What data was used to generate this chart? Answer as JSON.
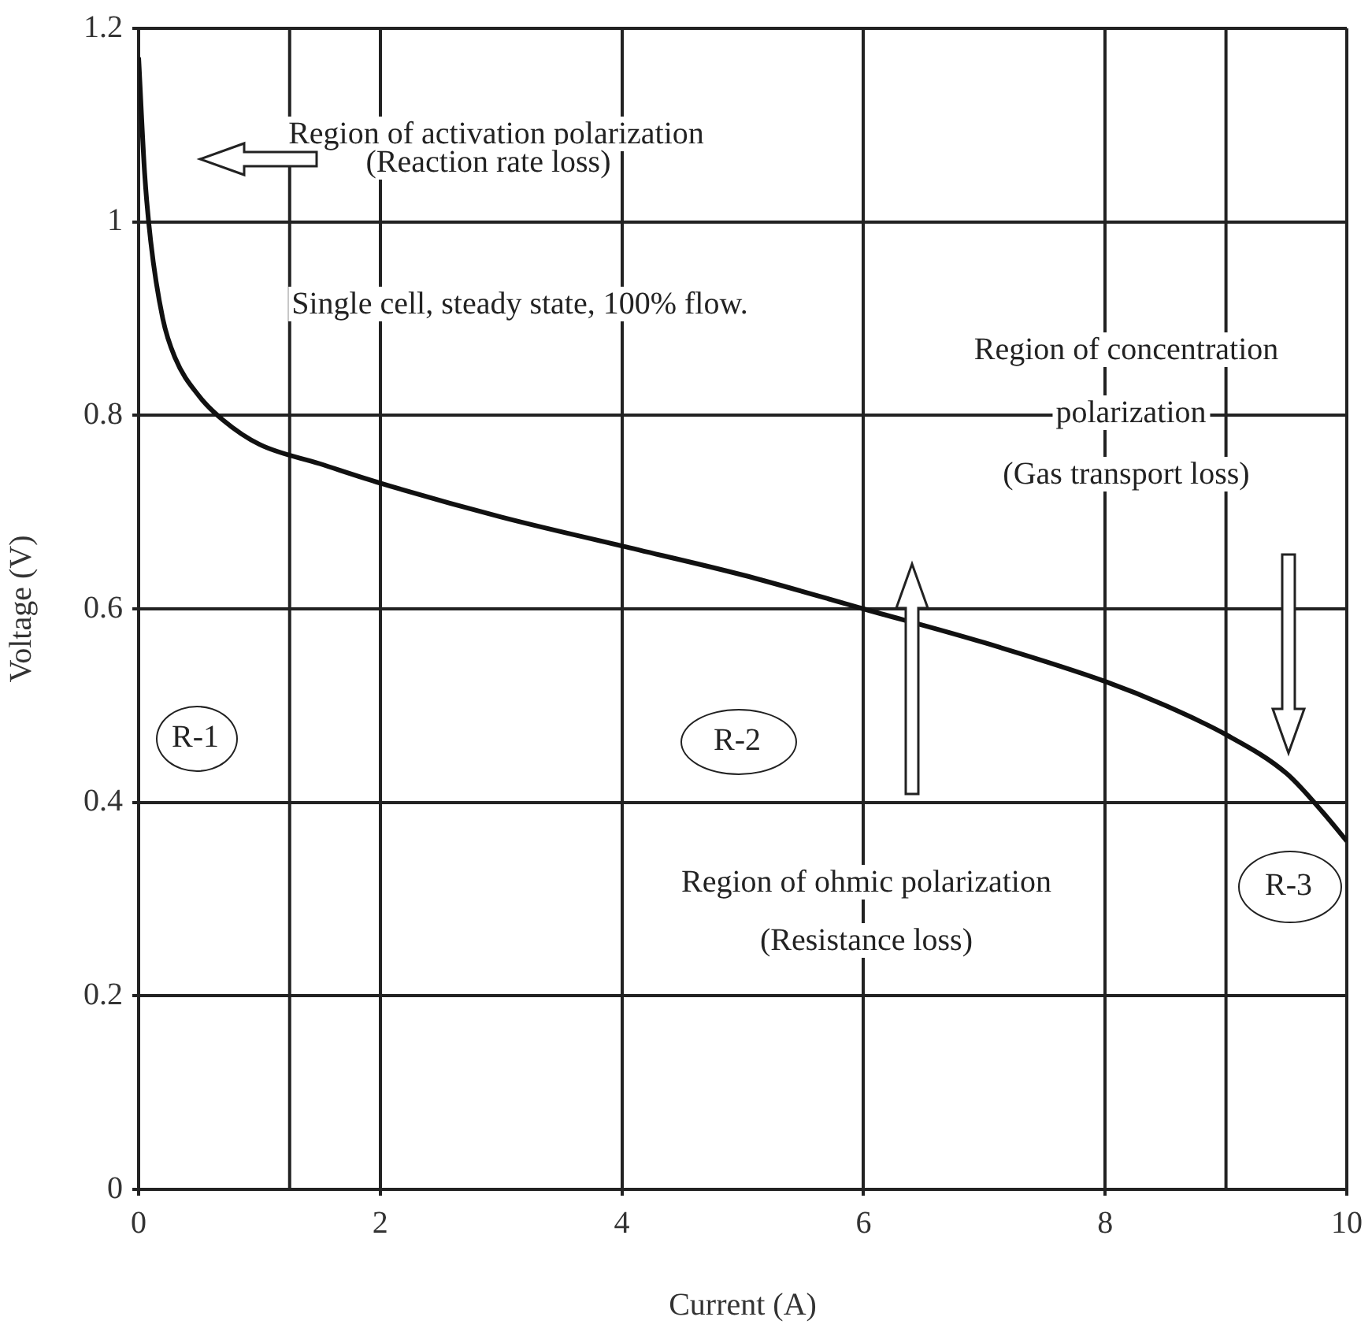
{
  "chart_data": {
    "type": "line",
    "xlabel": "Current (A)",
    "ylabel": "Voltage (V)",
    "x": [
      0,
      0.05,
      0.1,
      0.2,
      0.3,
      0.5,
      0.7,
      1,
      1.5,
      2,
      3,
      4,
      5,
      6,
      7,
      8,
      8.5,
      9,
      9.5,
      9.8,
      10
    ],
    "series": [
      {
        "color": "#111111",
        "values": [
          1.17,
          1.05,
          0.98,
          0.9,
          0.86,
          0.82,
          0.795,
          0.77,
          0.75,
          0.73,
          0.695,
          0.665,
          0.635,
          0.6,
          0.565,
          0.525,
          0.5,
          0.47,
          0.43,
          0.39,
          0.36
        ]
      }
    ],
    "xlim": [
      0,
      10
    ],
    "xticks": [
      0,
      2,
      4,
      6,
      8,
      10
    ],
    "ylim": [
      0,
      1.2
    ],
    "yticks": [
      0,
      0.2,
      0.4,
      0.6,
      0.8,
      1,
      1.2
    ],
    "grid": true,
    "marker": "none",
    "line_style": "solid",
    "ref_lines": [
      {
        "axis": "x",
        "value": 1.25,
        "color": "#222222"
      },
      {
        "axis": "x",
        "value": 9,
        "color": "#222222"
      }
    ],
    "annotations": [
      "Region of activation polarization",
      "(Reaction rate loss)",
      "Single cell, steady state, 100% flow.",
      "Region of concentration",
      "polarization",
      "(Gas transport loss)",
      "Region of ohmic polarization",
      "(Resistance loss)",
      "R-1",
      "R-2",
      "R-3"
    ]
  }
}
